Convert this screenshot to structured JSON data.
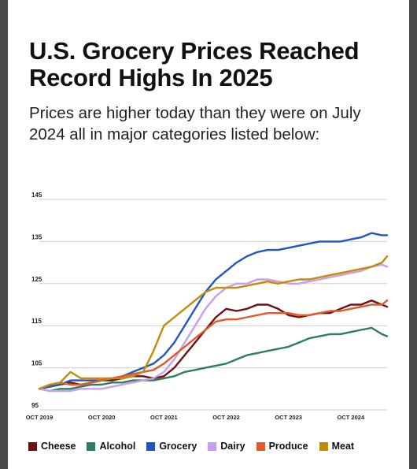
{
  "title": "U.S. Grocery Prices Reached Record Highs In 2025",
  "subtitle": "Prices are higher today than they were on July 2024 all in major categories listed below:",
  "chart_data": {
    "type": "line",
    "ylim": [
      95,
      145
    ],
    "yticks": [
      95,
      105,
      115,
      125,
      135,
      145
    ],
    "xticks": [
      "OCT 2019",
      "OCT 2020",
      "OCT 2021",
      "OCT 2022",
      "OCT 2023",
      "OCT 2024"
    ],
    "x_range": [
      "2019-10",
      "2025-05"
    ],
    "grid": true,
    "legend_position": "bottom",
    "x": [
      "2019-10",
      "2019-12",
      "2020-02",
      "2020-04",
      "2020-06",
      "2020-08",
      "2020-10",
      "2020-12",
      "2021-02",
      "2021-04",
      "2021-06",
      "2021-08",
      "2021-10",
      "2021-12",
      "2022-02",
      "2022-04",
      "2022-06",
      "2022-08",
      "2022-10",
      "2022-12",
      "2023-02",
      "2023-04",
      "2023-06",
      "2023-08",
      "2023-10",
      "2023-12",
      "2024-02",
      "2024-04",
      "2024-06",
      "2024-08",
      "2024-10",
      "2024-12",
      "2025-02",
      "2025-04",
      "2025-05"
    ],
    "series": [
      {
        "name": "Cheese",
        "color": "#6e0f14",
        "values": [
          100,
          100.5,
          101,
          101.5,
          101,
          101.5,
          102,
          102,
          102.5,
          103,
          103,
          102.5,
          103,
          105,
          108,
          111,
          114,
          117,
          119,
          118.5,
          119,
          120,
          120,
          119,
          117.5,
          117,
          117.5,
          118,
          118,
          119,
          120,
          120,
          121,
          120,
          119.5
        ]
      },
      {
        "name": "Alcohol",
        "color": "#2e7d5b",
        "values": [
          100,
          99.5,
          100,
          100,
          100.5,
          101,
          101,
          101.5,
          101.5,
          102,
          102,
          102,
          102.5,
          103,
          104,
          104.5,
          105,
          105.5,
          106,
          107,
          108,
          108.5,
          109,
          109.5,
          110,
          111,
          112,
          112.5,
          113,
          113,
          113.5,
          114,
          114.5,
          113,
          112.5
        ]
      },
      {
        "name": "Grocery",
        "color": "#1e56c8",
        "values": [
          100,
          100.5,
          101,
          102,
          102,
          102,
          102,
          102.5,
          103,
          104,
          105,
          106,
          108,
          111,
          115,
          119,
          123,
          126,
          128,
          130,
          131.5,
          132.5,
          133,
          133,
          133.5,
          134,
          134.5,
          135,
          135,
          135,
          135.5,
          136,
          137,
          136.5,
          136.5
        ]
      },
      {
        "name": "Dairy",
        "color": "#c79ff0",
        "values": [
          100,
          99.5,
          99.5,
          99.5,
          100,
          100,
          100,
          100.5,
          101,
          101.5,
          102,
          102.5,
          104,
          107,
          111,
          115,
          119,
          122,
          124,
          125,
          125,
          126,
          126,
          125.5,
          125,
          125,
          125.5,
          126,
          126.5,
          127,
          127.5,
          128,
          129,
          129.5,
          129
        ]
      },
      {
        "name": "Produce",
        "color": "#e05a2b",
        "values": [
          100,
          101,
          101.5,
          101,
          101,
          101.5,
          102,
          102.5,
          103,
          103.5,
          104,
          104.5,
          106,
          108,
          110,
          112,
          114,
          116,
          116.5,
          116.5,
          117,
          117.5,
          118,
          118,
          118,
          117.5,
          117.5,
          118,
          118.5,
          118.5,
          119,
          119.5,
          120,
          120,
          121
        ]
      },
      {
        "name": "Meat",
        "color": "#c48a0c",
        "values": [
          100,
          101,
          101.5,
          104,
          102.5,
          102.5,
          102.5,
          102.5,
          102.5,
          103,
          104,
          109,
          115,
          117,
          119,
          121,
          123,
          124,
          124,
          124,
          124.5,
          125,
          125.5,
          125,
          125.5,
          126,
          126,
          126.5,
          127,
          127.5,
          128,
          128.5,
          129,
          130,
          131.5
        ]
      }
    ]
  }
}
